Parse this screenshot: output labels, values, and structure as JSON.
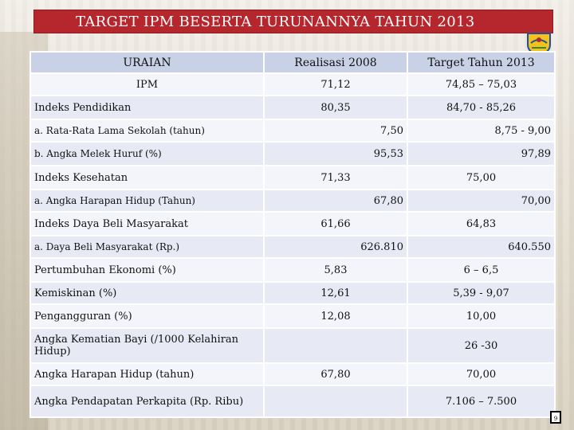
{
  "title": "TARGET IPM BESERTA TURUNANNYA TAHUN 2013",
  "headers": [
    "URAIAN",
    "Realisasi 2008",
    "Target Tahun 2013"
  ],
  "rows": [
    {
      "label": "IPM",
      "realisasi": "71,12",
      "target": "74,85 – 75,03"
    },
    {
      "label": "Indeks Pendidikan",
      "realisasi": "80,35",
      "target": "84,70 - 85,26"
    },
    {
      "label": "a.  Rata-Rata Lama Sekolah (tahun)",
      "realisasi": "7,50",
      "target": "8,75 - 9,00"
    },
    {
      "label": "b.  Angka Melek Huruf (%)",
      "realisasi": "95,53",
      "target": "97,89"
    },
    {
      "label": "Indeks Kesehatan",
      "realisasi": "71,33",
      "target": "75,00"
    },
    {
      "label": "a.   Angka Harapan Hidup (Tahun)",
      "realisasi": "67,80",
      "target": "70,00"
    },
    {
      "label": "Indeks Daya Beli Masyarakat",
      "realisasi": "61,66",
      "target": "64,83"
    },
    {
      "label": "a.   Daya Beli Masyarakat (Rp.)",
      "realisasi": "626.810",
      "target": "640.550"
    },
    {
      "label": "Pertumbuhan Ekonomi (%)",
      "realisasi": "5,83",
      "target": "6 – 6,5"
    },
    {
      "label": "Kemiskinan (%)",
      "realisasi": "12,61",
      "target": "5,39 - 9,07"
    },
    {
      "label": "Pengangguran (%)",
      "realisasi": "12,08",
      "target": "10,00"
    },
    {
      "label": "Angka Kematian Bayi (/1000 Kelahiran Hidup)",
      "realisasi": "",
      "target": "26 -30"
    },
    {
      "label": "Angka Harapan Hidup (tahun)",
      "realisasi": "67,80",
      "target": "70,00"
    },
    {
      "label": "Angka Pendapatan Perkapita (Rp. Ribu)",
      "realisasi": "",
      "target": "7.106 – 7.500"
    }
  ],
  "page_number": "9",
  "colors": {
    "title_bg": "#b5272d",
    "header_bg": "#c9d1e6",
    "row_even": "#e7eaf4",
    "row_odd": "#f4f5fa"
  }
}
